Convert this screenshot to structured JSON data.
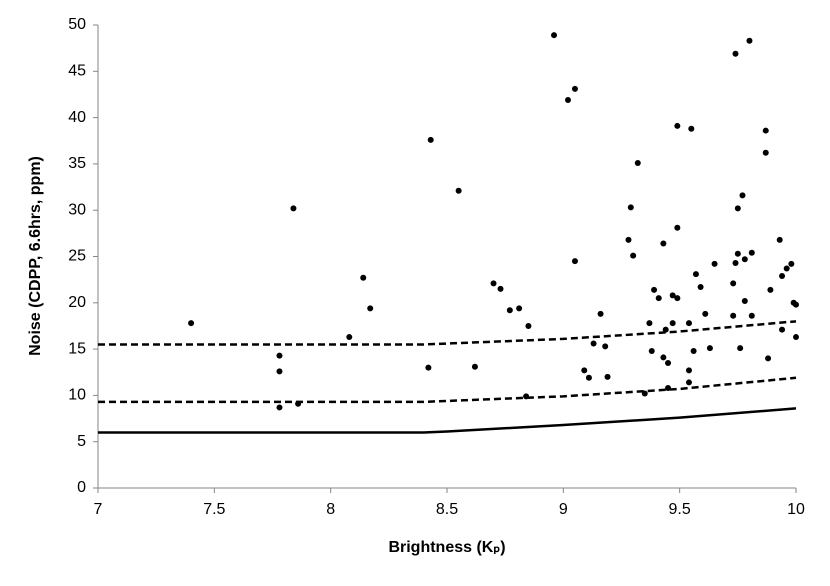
{
  "chart_data": {
    "type": "scatter",
    "xlabel": "Brightness (Kₚ)",
    "ylabel": "Noise (CDPP, 6.6hrs, ppm)",
    "xlim": [
      7,
      10
    ],
    "xticks": [
      7,
      7.5,
      8,
      8.5,
      9,
      9.5,
      10
    ],
    "ylim": [
      0,
      50
    ],
    "yticks": [
      0,
      5,
      10,
      15,
      20,
      25,
      30,
      35,
      40,
      45,
      50
    ],
    "grid": false,
    "series": [
      {
        "mark": "dot",
        "color": "#000000",
        "x": [
          7.4,
          7.78,
          7.78,
          7.78,
          7.84,
          7.86,
          8.08,
          8.14,
          8.17,
          8.42,
          8.43,
          8.55,
          8.62,
          8.7,
          8.73,
          8.77,
          8.81,
          8.85,
          8.84,
          8.96,
          9.02,
          9.05,
          9.05,
          9.09,
          9.11,
          9.13,
          9.16,
          9.18,
          9.19,
          9.28,
          9.29,
          9.3,
          9.32,
          9.35,
          9.37,
          9.38,
          9.39,
          9.41,
          9.43,
          9.43,
          9.44,
          9.45,
          9.45,
          9.47,
          9.47,
          9.49,
          9.49,
          9.49,
          9.54,
          9.54,
          9.54,
          9.55,
          9.56,
          9.57,
          9.59,
          9.61,
          9.63,
          9.65,
          9.73,
          9.73,
          9.74,
          9.74,
          9.75,
          9.75,
          9.76,
          9.77,
          9.78,
          9.78,
          9.8,
          9.81,
          9.81,
          9.87,
          9.87,
          9.88,
          9.89,
          9.93,
          9.94,
          9.94,
          9.96,
          9.98,
          9.99,
          10.0,
          10.0
        ],
        "values": [
          17.8,
          12.6,
          14.3,
          8.7,
          30.2,
          9.1,
          16.3,
          22.7,
          19.4,
          13.0,
          37.6,
          32.1,
          13.1,
          22.1,
          21.5,
          19.2,
          19.4,
          17.5,
          9.9,
          48.9,
          41.9,
          43.1,
          24.5,
          12.7,
          11.9,
          15.6,
          18.8,
          15.3,
          12.0,
          26.8,
          30.3,
          25.1,
          35.1,
          10.2,
          17.8,
          14.8,
          21.4,
          20.5,
          26.4,
          14.1,
          17.1,
          13.5,
          10.8,
          20.8,
          17.8,
          20.5,
          39.1,
          28.1,
          17.8,
          12.7,
          11.4,
          38.8,
          14.8,
          23.1,
          21.7,
          18.8,
          15.1,
          24.2,
          18.6,
          22.1,
          46.9,
          24.3,
          25.3,
          30.2,
          15.1,
          31.6,
          24.7,
          20.2,
          48.3,
          18.6,
          25.4,
          36.2,
          38.6,
          14.0,
          21.4,
          26.8,
          17.1,
          22.9,
          23.7,
          24.2,
          20.0,
          16.3,
          19.8
        ]
      },
      {
        "mark": "line",
        "dashed": true,
        "color": "#000000",
        "x": [
          7,
          8.4,
          8.5,
          9,
          9.5,
          10
        ],
        "values": [
          15.5,
          15.5,
          15.6,
          16.1,
          16.9,
          18.0
        ]
      },
      {
        "mark": "line",
        "dashed": true,
        "color": "#000000",
        "x": [
          7,
          8.4,
          8.5,
          9,
          9.5,
          10
        ],
        "values": [
          9.3,
          9.3,
          9.4,
          9.9,
          10.7,
          11.9
        ]
      },
      {
        "mark": "line",
        "dashed": false,
        "color": "#000000",
        "x": [
          7,
          8.4,
          8.5,
          9,
          9.5,
          10
        ],
        "values": [
          6.0,
          6.0,
          6.1,
          6.8,
          7.6,
          8.6
        ]
      }
    ]
  }
}
